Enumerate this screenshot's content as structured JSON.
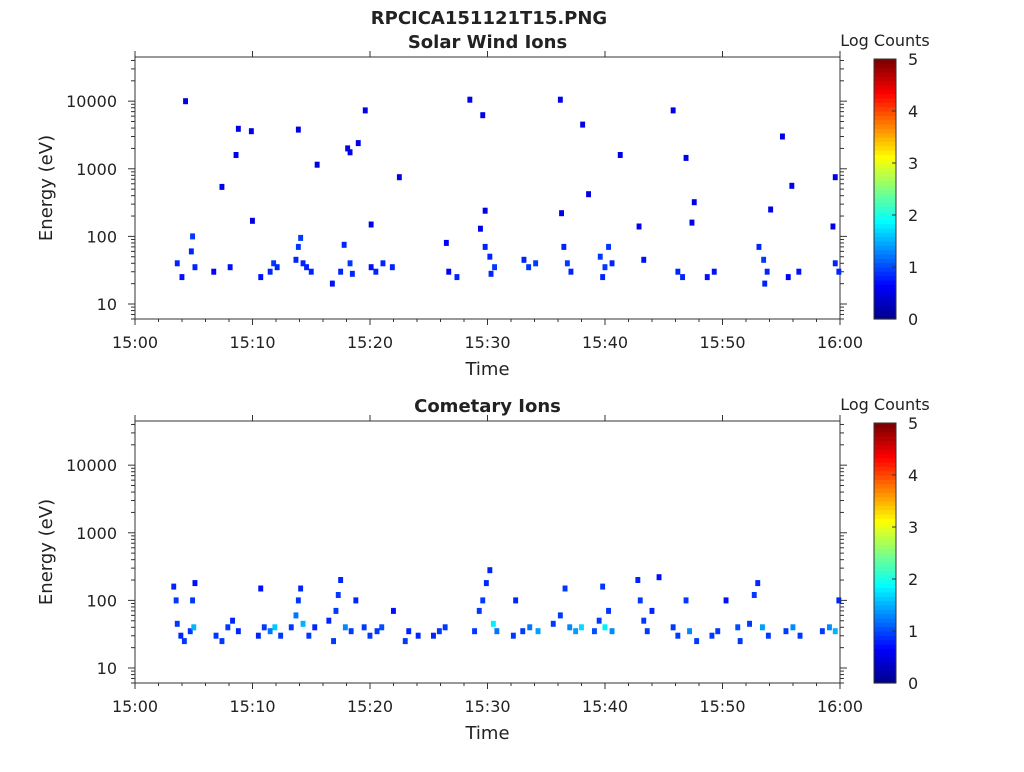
{
  "figure_title": "RPCICA151121T15.PNG",
  "colors": {
    "colormap": [
      "#00008f",
      "#0000ff",
      "#0080ff",
      "#00ffff",
      "#80ff80",
      "#ffff00",
      "#ff8000",
      "#ff0000",
      "#800000"
    ],
    "frame": "#333333",
    "background": "#ffffff"
  },
  "chart_data": [
    {
      "type": "heatmap",
      "title": "Solar Wind Ions",
      "xlabel": "Time",
      "ylabel": "Energy (eV)",
      "yscale": "log",
      "xlim": [
        "15:00",
        "16:00"
      ],
      "ylim": [
        6,
        45000
      ],
      "xticks": [
        "15:00",
        "15:10",
        "15:20",
        "15:30",
        "15:40",
        "15:50",
        "16:00"
      ],
      "yticks": [
        "10",
        "100",
        "1000",
        "10000"
      ],
      "colorbar": {
        "label": "Log Counts",
        "min": 0,
        "max": 5,
        "ticks": [
          "0",
          "1",
          "2",
          "3",
          "4",
          "5"
        ]
      },
      "points": [
        [
          4.3,
          10000,
          0.5
        ],
        [
          8.8,
          3900,
          0.5
        ],
        [
          9.9,
          3600,
          0.5
        ],
        [
          13.9,
          3800,
          0.5
        ],
        [
          19.6,
          7300,
          0.5
        ],
        [
          28.5,
          10500,
          0.5
        ],
        [
          29.6,
          6200,
          0.5
        ],
        [
          36.2,
          10500,
          0.5
        ],
        [
          38.1,
          4500,
          0.5
        ],
        [
          45.8,
          7300,
          0.5
        ],
        [
          55.1,
          3000,
          0.5
        ],
        [
          8.6,
          1600,
          0.5
        ],
        [
          7.4,
          540,
          0.5
        ],
        [
          15.5,
          1150,
          0.5
        ],
        [
          18.1,
          2000,
          0.5
        ],
        [
          18.3,
          1750,
          0.5
        ],
        [
          19.0,
          2400,
          0.5
        ],
        [
          22.5,
          750,
          0.5
        ],
        [
          41.3,
          1600,
          0.5
        ],
        [
          38.6,
          420,
          0.5
        ],
        [
          46.9,
          1450,
          0.5
        ],
        [
          55.9,
          560,
          0.5
        ],
        [
          59.6,
          750,
          0.5
        ],
        [
          10.0,
          170,
          0.5
        ],
        [
          20.1,
          150,
          0.5
        ],
        [
          29.8,
          240,
          0.5
        ],
        [
          29.4,
          130,
          0.5
        ],
        [
          36.3,
          220,
          0.5
        ],
        [
          42.9,
          140,
          0.5
        ],
        [
          47.6,
          320,
          0.5
        ],
        [
          47.4,
          160,
          0.5
        ],
        [
          54.1,
          250,
          0.5
        ],
        [
          59.4,
          140,
          0.5
        ],
        [
          3.6,
          40,
          0.8
        ],
        [
          4.0,
          25,
          0.7
        ],
        [
          4.8,
          60,
          0.8
        ],
        [
          4.9,
          100,
          0.9
        ],
        [
          5.1,
          35,
          0.8
        ],
        [
          6.7,
          30,
          0.6
        ],
        [
          8.1,
          35,
          0.7
        ],
        [
          10.7,
          25,
          0.7
        ],
        [
          11.5,
          30,
          0.8
        ],
        [
          11.8,
          40,
          0.9
        ],
        [
          12.1,
          35,
          0.8
        ],
        [
          13.7,
          45,
          0.8
        ],
        [
          13.9,
          70,
          0.9
        ],
        [
          14.1,
          95,
          0.9
        ],
        [
          14.3,
          40,
          0.8
        ],
        [
          14.6,
          35,
          0.8
        ],
        [
          15.0,
          30,
          0.8
        ],
        [
          16.8,
          20,
          0.7
        ],
        [
          17.5,
          30,
          0.8
        ],
        [
          17.8,
          75,
          0.8
        ],
        [
          18.3,
          40,
          0.9
        ],
        [
          18.5,
          28,
          0.8
        ],
        [
          20.1,
          35,
          0.7
        ],
        [
          20.5,
          30,
          0.8
        ],
        [
          21.1,
          40,
          0.8
        ],
        [
          21.9,
          35,
          0.8
        ],
        [
          26.7,
          30,
          0.6
        ],
        [
          26.5,
          80,
          0.6
        ],
        [
          27.4,
          25,
          0.8
        ],
        [
          29.8,
          70,
          0.8
        ],
        [
          30.2,
          50,
          0.8
        ],
        [
          30.6,
          35,
          0.9
        ],
        [
          30.3,
          28,
          0.8
        ],
        [
          33.1,
          45,
          0.8
        ],
        [
          33.5,
          35,
          0.9
        ],
        [
          34.1,
          40,
          0.9
        ],
        [
          36.5,
          70,
          0.8
        ],
        [
          36.8,
          40,
          0.9
        ],
        [
          37.1,
          30,
          0.8
        ],
        [
          39.6,
          50,
          0.9
        ],
        [
          40.0,
          35,
          0.9
        ],
        [
          40.3,
          70,
          0.9
        ],
        [
          40.6,
          40,
          0.8
        ],
        [
          39.8,
          25,
          0.8
        ],
        [
          43.3,
          45,
          0.7
        ],
        [
          46.2,
          30,
          0.8
        ],
        [
          46.6,
          25,
          0.8
        ],
        [
          48.7,
          25,
          0.7
        ],
        [
          49.3,
          30,
          0.7
        ],
        [
          53.1,
          70,
          0.8
        ],
        [
          53.5,
          45,
          0.9
        ],
        [
          53.8,
          30,
          0.8
        ],
        [
          53.6,
          20,
          0.8
        ],
        [
          55.6,
          25,
          0.6
        ],
        [
          56.5,
          30,
          0.7
        ],
        [
          59.6,
          40,
          0.8
        ],
        [
          59.9,
          30,
          0.8
        ]
      ]
    },
    {
      "type": "heatmap",
      "title": "Cometary Ions",
      "xlabel": "Time",
      "ylabel": "Energy (eV)",
      "yscale": "log",
      "xlim": [
        "15:00",
        "16:00"
      ],
      "ylim": [
        6,
        45000
      ],
      "xticks": [
        "15:00",
        "15:10",
        "15:20",
        "15:30",
        "15:40",
        "15:50",
        "16:00"
      ],
      "yticks": [
        "10",
        "100",
        "1000",
        "10000"
      ],
      "colorbar": {
        "label": "Log Counts",
        "min": 0,
        "max": 5,
        "ticks": [
          "0",
          "1",
          "2",
          "3",
          "4",
          "5"
        ]
      },
      "points": [
        [
          3.3,
          160,
          0.8
        ],
        [
          3.5,
          100,
          0.9
        ],
        [
          3.6,
          45,
          0.9
        ],
        [
          3.9,
          30,
          0.8
        ],
        [
          4.2,
          25,
          0.9
        ],
        [
          4.7,
          35,
          0.9
        ],
        [
          5.0,
          40,
          1.5
        ],
        [
          4.9,
          100,
          0.9
        ],
        [
          5.1,
          180,
          0.7
        ],
        [
          6.9,
          30,
          0.9
        ],
        [
          7.4,
          25,
          0.9
        ],
        [
          7.9,
          40,
          0.9
        ],
        [
          8.3,
          50,
          0.8
        ],
        [
          8.8,
          35,
          0.8
        ],
        [
          10.5,
          30,
          0.8
        ],
        [
          10.7,
          150,
          0.7
        ],
        [
          11.0,
          40,
          0.9
        ],
        [
          11.5,
          35,
          1.2
        ],
        [
          11.9,
          40,
          1.6
        ],
        [
          12.4,
          30,
          0.9
        ],
        [
          13.3,
          40,
          0.9
        ],
        [
          13.7,
          60,
          1.2
        ],
        [
          13.9,
          100,
          0.9
        ],
        [
          14.1,
          150,
          0.8
        ],
        [
          14.3,
          45,
          1.5
        ],
        [
          14.8,
          30,
          0.9
        ],
        [
          15.3,
          40,
          0.8
        ],
        [
          16.5,
          50,
          0.8
        ],
        [
          16.9,
          25,
          0.9
        ],
        [
          17.1,
          70,
          0.9
        ],
        [
          17.3,
          120,
          0.9
        ],
        [
          17.5,
          200,
          0.8
        ],
        [
          17.9,
          40,
          1.3
        ],
        [
          18.4,
          35,
          0.9
        ],
        [
          18.8,
          100,
          0.8
        ],
        [
          19.5,
          40,
          0.9
        ],
        [
          20.0,
          30,
          0.9
        ],
        [
          20.6,
          35,
          0.9
        ],
        [
          21.0,
          40,
          1.0
        ],
        [
          22.0,
          70,
          0.7
        ],
        [
          23.0,
          25,
          0.9
        ],
        [
          23.3,
          35,
          0.8
        ],
        [
          24.1,
          30,
          0.8
        ],
        [
          25.4,
          30,
          0.8
        ],
        [
          25.9,
          35,
          0.9
        ],
        [
          26.4,
          40,
          0.9
        ],
        [
          28.9,
          35,
          0.9
        ],
        [
          29.3,
          70,
          0.9
        ],
        [
          29.6,
          100,
          0.9
        ],
        [
          29.9,
          180,
          0.8
        ],
        [
          30.2,
          280,
          0.8
        ],
        [
          30.5,
          45,
          1.8
        ],
        [
          30.8,
          35,
          1.2
        ],
        [
          32.2,
          30,
          0.9
        ],
        [
          32.4,
          100,
          0.8
        ],
        [
          33.0,
          35,
          0.9
        ],
        [
          33.6,
          40,
          1.2
        ],
        [
          34.3,
          35,
          1.4
        ],
        [
          35.6,
          45,
          0.9
        ],
        [
          36.2,
          60,
          0.9
        ],
        [
          36.6,
          150,
          0.9
        ],
        [
          37.0,
          40,
          1.3
        ],
        [
          37.5,
          35,
          1.4
        ],
        [
          38.0,
          40,
          1.7
        ],
        [
          39.1,
          35,
          1.0
        ],
        [
          39.5,
          50,
          0.9
        ],
        [
          39.8,
          160,
          0.9
        ],
        [
          40.0,
          40,
          1.8
        ],
        [
          40.3,
          70,
          0.9
        ],
        [
          40.6,
          35,
          1.3
        ],
        [
          42.8,
          200,
          0.8
        ],
        [
          43.0,
          100,
          0.9
        ],
        [
          43.3,
          50,
          0.9
        ],
        [
          43.6,
          35,
          0.9
        ],
        [
          44.0,
          70,
          0.8
        ],
        [
          44.6,
          220,
          0.7
        ],
        [
          45.8,
          40,
          0.9
        ],
        [
          46.2,
          30,
          0.9
        ],
        [
          46.9,
          100,
          0.9
        ],
        [
          47.2,
          35,
          1.3
        ],
        [
          47.8,
          25,
          0.9
        ],
        [
          49.1,
          30,
          0.9
        ],
        [
          49.6,
          35,
          0.9
        ],
        [
          50.3,
          100,
          0.7
        ],
        [
          51.3,
          40,
          1.0
        ],
        [
          51.5,
          25,
          0.9
        ],
        [
          52.3,
          45,
          0.9
        ],
        [
          52.7,
          120,
          0.9
        ],
        [
          53.0,
          180,
          0.8
        ],
        [
          53.4,
          40,
          1.4
        ],
        [
          53.9,
          30,
          0.9
        ],
        [
          55.4,
          35,
          0.9
        ],
        [
          56.0,
          40,
          1.3
        ],
        [
          56.6,
          30,
          0.9
        ],
        [
          58.5,
          35,
          0.9
        ],
        [
          59.1,
          40,
          1.3
        ],
        [
          59.6,
          35,
          1.5
        ],
        [
          59.9,
          100,
          0.8
        ]
      ]
    }
  ]
}
